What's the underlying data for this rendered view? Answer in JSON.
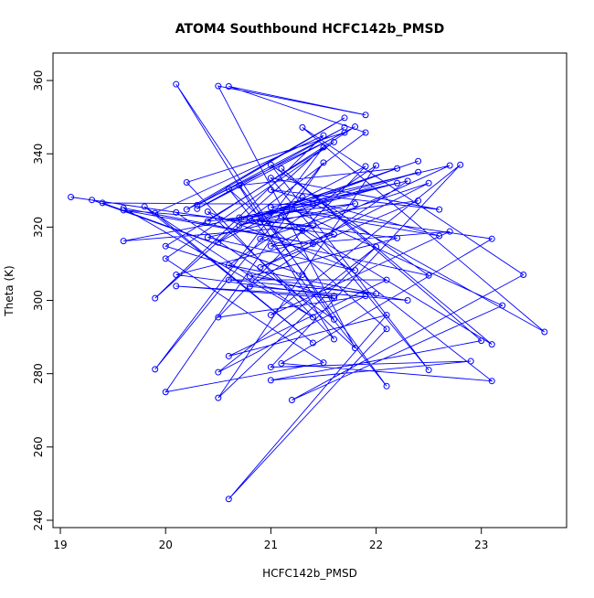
{
  "chart_data": {
    "type": "line",
    "markers": true,
    "color": "#0000ff",
    "title": "ATOM4 Southbound HCFC142b_PMSD",
    "x_label": "HCFC142b_PMSD",
    "y_label": "Theta (K)",
    "x": [
      19.1,
      21.3,
      19.3,
      21.3,
      19.4,
      21.4,
      19.6,
      21.4,
      19.6,
      21.4,
      19.6,
      21.4,
      19.8,
      21.4,
      19.9,
      21.5,
      19.9,
      21.5,
      19.9,
      21.5,
      20.0,
      21.5,
      20.0,
      21.6,
      20.0,
      21.6,
      20.1,
      21.6,
      20.1,
      21.6,
      20.1,
      21.6,
      20.1,
      21.6,
      20.2,
      21.7,
      20.2,
      21.7,
      20.3,
      21.7,
      20.3,
      21.8,
      20.4,
      21.8,
      20.4,
      21.8,
      20.4,
      21.8,
      20.5,
      21.9,
      20.6,
      21.9,
      20.5,
      21.9,
      20.5,
      21.9,
      20.5,
      22.0,
      20.5,
      22.0,
      20.6,
      22.0,
      20.6,
      22.1,
      20.6,
      22.1,
      20.6,
      22.1,
      20.6,
      22.1,
      20.7,
      22.2,
      20.7,
      22.2,
      20.7,
      22.2,
      20.8,
      22.3,
      20.8,
      22.3,
      20.8,
      22.4,
      20.9,
      22.4,
      20.9,
      22.4,
      20.9,
      22.5,
      20.9,
      22.5,
      21.0,
      22.5,
      21.0,
      22.6,
      21.0,
      22.6,
      21.0,
      22.7,
      21.0,
      22.7,
      21.0,
      22.8,
      21.0,
      22.9,
      21.0,
      23.0,
      21.1,
      23.1,
      21.1,
      23.1,
      21.1,
      23.1,
      21.2,
      23.2,
      21.2,
      23.4,
      21.3,
      23.6,
      21.3
    ],
    "values": [
      328.2,
      319.0,
      327.4,
      307.0,
      326.6,
      326.2,
      316.2,
      320.4,
      324.6,
      315.4,
      325.2,
      295.4,
      325.6,
      288.4,
      323.8,
      345.0,
      300.6,
      341.8,
      281.2,
      337.6,
      275.0,
      283.0,
      311.4,
      343.2,
      314.8,
      300.6,
      303.9,
      301.2,
      307.0,
      318.0,
      324.0,
      294.8,
      359.0,
      289.4,
      332.2,
      345.8,
      324.8,
      349.8,
      326.0,
      347.2,
      325.0,
      347.4,
      321.6,
      326.4,
      317.2,
      308.2,
      324.2,
      287.0,
      358.5,
      350.6,
      358.4,
      345.8,
      315.8,
      336.6,
      295.4,
      301.2,
      280.4,
      314.6,
      273.4,
      336.8,
      309.6,
      301.8,
      305.6,
      305.6,
      284.8,
      296.0,
      245.8,
      292.2,
      330.4,
      276.6,
      331.4,
      336.0,
      320.4,
      332.0,
      322.6,
      317.0,
      306.6,
      300.0,
      303.8,
      332.6,
      322.4,
      338.0,
      323.2,
      335.0,
      321.4,
      327.2,
      309.0,
      332.0,
      316.8,
      306.8,
      337.0,
      281.0,
      333.4,
      324.8,
      330.2,
      317.6,
      325.4,
      336.8,
      314.8,
      318.8,
      296.0,
      337.0,
      281.8,
      283.4,
      278.2,
      289.0,
      336.0,
      288.0,
      323.0,
      278.0,
      282.8,
      316.8,
      324.8,
      298.6,
      272.8,
      307.0,
      347.2,
      291.4,
      328.2
    ],
    "xlim": [
      18.93,
      23.81
    ],
    "xticks": [
      19,
      20,
      21,
      22,
      23
    ],
    "ylim": [
      238,
      367.5
    ],
    "yticks": [
      240,
      260,
      280,
      300,
      320,
      340,
      360
    ]
  }
}
